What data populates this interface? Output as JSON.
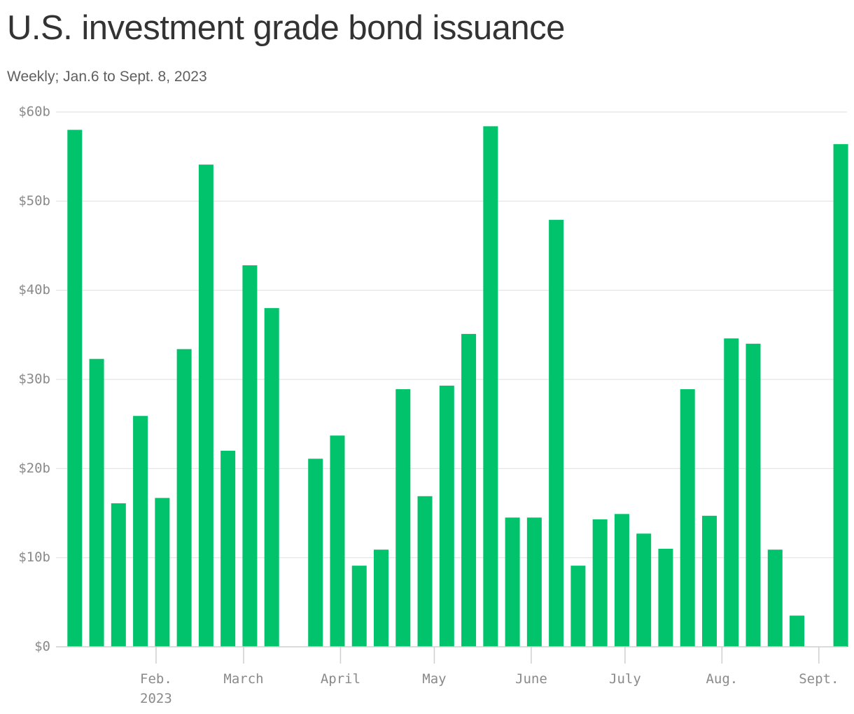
{
  "chart_data": {
    "type": "bar",
    "title": "U.S. investment grade bond issuance",
    "subtitle": "Weekly; Jan.6 to Sept. 8, 2023",
    "xlabel": "",
    "ylabel": "",
    "ylim": [
      0,
      60
    ],
    "y_ticks": [
      {
        "value": 0,
        "label": "$0"
      },
      {
        "value": 10,
        "label": "$10b"
      },
      {
        "value": 20,
        "label": "$20b"
      },
      {
        "value": 30,
        "label": "$30b"
      },
      {
        "value": 40,
        "label": "$40b"
      },
      {
        "value": 50,
        "label": "$50b"
      },
      {
        "value": 60,
        "label": "$60b"
      }
    ],
    "x_ticks": [
      {
        "date": "2023-02-01",
        "label": "Feb.",
        "sublabel": "2023"
      },
      {
        "date": "2023-03-01",
        "label": "March"
      },
      {
        "date": "2023-04-01",
        "label": "April"
      },
      {
        "date": "2023-05-01",
        "label": "May"
      },
      {
        "date": "2023-06-01",
        "label": "June"
      },
      {
        "date": "2023-07-01",
        "label": "July"
      },
      {
        "date": "2023-08-01",
        "label": "Aug."
      },
      {
        "date": "2023-09-01",
        "label": "Sept."
      }
    ],
    "grid": true,
    "bar_color": "#00c36b",
    "categories": [
      "2023-01-06",
      "2023-01-13",
      "2023-01-20",
      "2023-01-27",
      "2023-02-03",
      "2023-02-10",
      "2023-02-17",
      "2023-02-24",
      "2023-03-03",
      "2023-03-10",
      "2023-03-17",
      "2023-03-24",
      "2023-03-31",
      "2023-04-07",
      "2023-04-14",
      "2023-04-21",
      "2023-04-28",
      "2023-05-05",
      "2023-05-12",
      "2023-05-19",
      "2023-05-26",
      "2023-06-02",
      "2023-06-09",
      "2023-06-16",
      "2023-06-23",
      "2023-06-30",
      "2023-07-07",
      "2023-07-14",
      "2023-07-21",
      "2023-07-28",
      "2023-08-04",
      "2023-08-11",
      "2023-08-18",
      "2023-08-25",
      "2023-09-01",
      "2023-09-08"
    ],
    "values": [
      58.0,
      32.3,
      16.1,
      25.9,
      16.7,
      33.4,
      54.1,
      22.0,
      42.8,
      38.0,
      0,
      21.1,
      23.7,
      9.1,
      10.9,
      28.9,
      16.9,
      29.3,
      35.1,
      58.4,
      14.5,
      14.5,
      47.9,
      9.1,
      14.3,
      14.9,
      12.7,
      11.0,
      28.9,
      14.7,
      34.6,
      34.0,
      10.9,
      3.5,
      0,
      56.4
    ]
  }
}
